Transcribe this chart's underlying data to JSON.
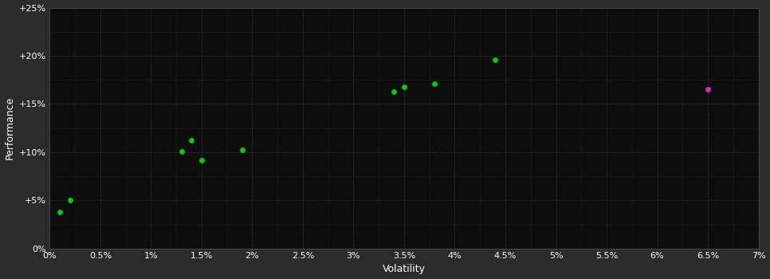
{
  "background_color": "#2b2b2b",
  "plot_bg_color": "#0d0d0d",
  "grid_color": "#444444",
  "xlabel": "Volatility",
  "ylabel": "Performance",
  "xlim": [
    0,
    0.07
  ],
  "ylim": [
    0,
    0.25
  ],
  "xticks": [
    0.0,
    0.005,
    0.01,
    0.015,
    0.02,
    0.025,
    0.03,
    0.035,
    0.04,
    0.045,
    0.05,
    0.055,
    0.06,
    0.065,
    0.07
  ],
  "yticks": [
    0.0,
    0.05,
    0.1,
    0.15,
    0.2,
    0.25
  ],
  "xtick_labels": [
    "0%",
    "0.5%",
    "1%",
    "1.5%",
    "2%",
    "2.5%",
    "3%",
    "3.5%",
    "4%",
    "4.5%",
    "5%",
    "5.5%",
    "6%",
    "6.5%",
    "7%"
  ],
  "ytick_labels": [
    "0%",
    "+5%",
    "+10%",
    "+15%",
    "+20%",
    "+25%"
  ],
  "minor_xticks": [
    0.0025,
    0.0075,
    0.0125,
    0.0175,
    0.0225,
    0.0275,
    0.0325,
    0.0375,
    0.0425,
    0.0475,
    0.0525,
    0.0575,
    0.0625,
    0.0675
  ],
  "minor_yticks": [
    0.025,
    0.075,
    0.125,
    0.175,
    0.225
  ],
  "green_points": [
    [
      0.001,
      0.038
    ],
    [
      0.002,
      0.05
    ],
    [
      0.013,
      0.101
    ],
    [
      0.014,
      0.112
    ],
    [
      0.015,
      0.092
    ],
    [
      0.019,
      0.102
    ],
    [
      0.034,
      0.163
    ],
    [
      0.035,
      0.168
    ],
    [
      0.038,
      0.171
    ],
    [
      0.044,
      0.196
    ]
  ],
  "magenta_points": [
    [
      0.065,
      0.165
    ]
  ],
  "green_color": "#00cc00",
  "magenta_color": "#cc33cc",
  "marker_size": 25,
  "font_color": "#ffffff",
  "tick_fontsize": 8,
  "label_fontsize": 9
}
